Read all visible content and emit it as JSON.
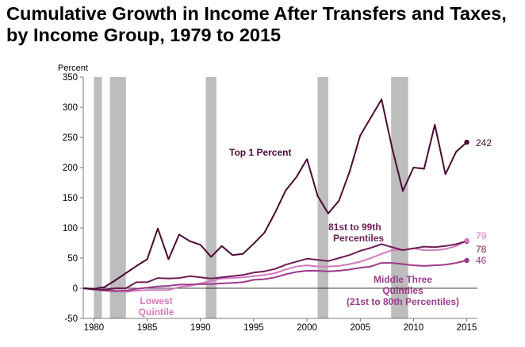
{
  "chart_data": {
    "type": "line",
    "title": "Cumulative Growth in Income After Transfers and Taxes, by Income Group, 1979 to 2015",
    "ylabel": "Percent",
    "xlabel": "",
    "ylim": [
      -50,
      350
    ],
    "xlim": [
      1979,
      2016
    ],
    "yticks": [
      -50,
      0,
      50,
      100,
      150,
      200,
      250,
      300,
      350
    ],
    "xticks": [
      1980,
      1985,
      1990,
      1995,
      2000,
      2005,
      2010,
      2015
    ],
    "recessions": [
      [
        1980.0,
        1980.75
      ],
      [
        1981.5,
        1983.0
      ],
      [
        1990.5,
        1991.5
      ],
      [
        2001.0,
        2002.0
      ],
      [
        2007.9,
        2009.5
      ]
    ],
    "x": [
      1979,
      1980,
      1981,
      1982,
      1983,
      1984,
      1985,
      1986,
      1987,
      1988,
      1989,
      1990,
      1991,
      1992,
      1993,
      1994,
      1995,
      1996,
      1997,
      1998,
      1999,
      2000,
      2001,
      2002,
      2003,
      2004,
      2005,
      2006,
      2007,
      2008,
      2009,
      2010,
      2011,
      2012,
      2013,
      2014,
      2015
    ],
    "series": [
      {
        "name": "Top 1 Percent",
        "color": "#4a0a35",
        "values": [
          0,
          -1,
          2,
          13,
          25,
          37,
          48,
          99,
          48,
          89,
          78,
          72,
          52,
          70,
          55,
          57,
          74,
          92,
          125,
          162,
          184,
          214,
          153,
          124,
          145,
          193,
          253,
          283,
          313,
          232,
          161,
          200,
          198,
          271,
          189,
          226,
          242
        ],
        "end_label": "242"
      },
      {
        "name": "81st to 99th Percentiles",
        "color": "#6e1d55",
        "values": [
          0,
          -2,
          -3,
          0,
          0,
          10,
          10,
          17,
          16,
          17,
          20,
          18,
          16,
          18,
          20,
          22,
          26,
          28,
          32,
          39,
          44,
          49,
          47,
          45,
          50,
          55,
          62,
          67,
          73,
          68,
          63,
          66,
          69,
          68,
          70,
          73,
          78
        ],
        "end_label": "78"
      },
      {
        "name": "Middle Three Quintiles (21st to 80th Percentiles)",
        "color": "#9c3a8a",
        "values": [
          0,
          -2,
          -4,
          -5,
          -4,
          -1,
          1,
          3,
          4,
          6,
          6,
          7,
          7,
          8,
          9,
          10,
          14,
          15,
          18,
          23,
          27,
          29,
          29,
          28,
          29,
          31,
          34,
          36,
          42,
          42,
          40,
          38,
          37,
          38,
          39,
          42,
          46
        ],
        "end_label": "46"
      },
      {
        "name": "Lowest Quintile",
        "color": "#d478c0",
        "values": [
          0,
          -1,
          -2,
          -4,
          -6,
          -4,
          -3,
          -3,
          -3,
          2,
          4,
          8,
          12,
          16,
          17,
          18,
          20,
          22,
          25,
          31,
          36,
          38,
          36,
          36,
          37,
          40,
          44,
          50,
          57,
          63,
          64,
          66,
          63,
          63,
          65,
          70,
          79
        ],
        "end_label": "79"
      }
    ],
    "annotations": {
      "top1": "Top 1 Percent",
      "p81_line1": "81st to 99th",
      "p81_line2": "Percentiles",
      "mid_line1": "Middle Three",
      "mid_line2": "Quintiles",
      "mid_line3": "(21st to 80th Percentiles)",
      "low_line1": "Lowest",
      "low_line2": "Quintile"
    },
    "grid": false,
    "legend": "inline labels"
  }
}
